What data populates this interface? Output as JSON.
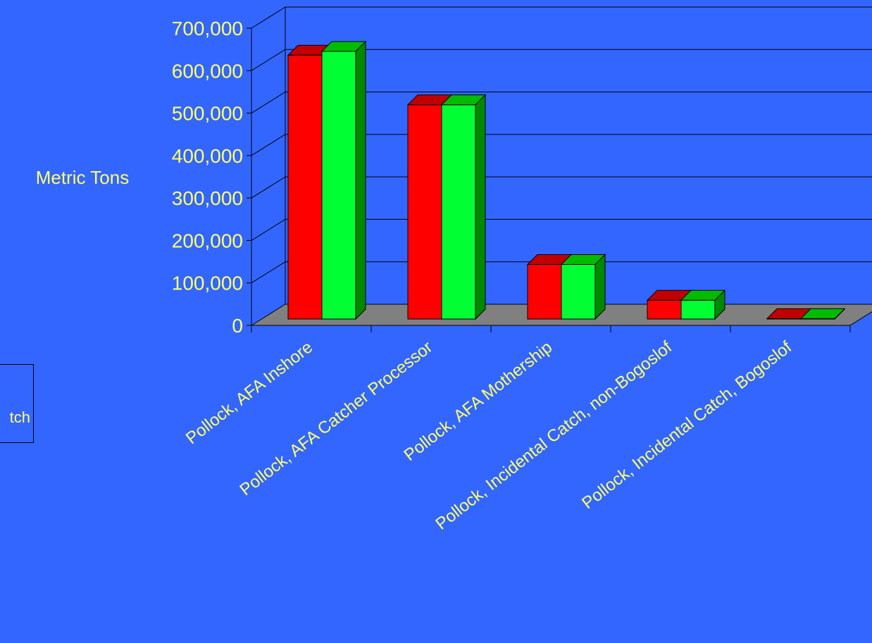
{
  "chart_data": {
    "type": "bar",
    "ylabel": "Metric Tons",
    "ylim": [
      0,
      700000
    ],
    "yticks": [
      "0",
      "100,000",
      "200,000",
      "300,000",
      "400,000",
      "500,000",
      "600,000",
      "700,000"
    ],
    "categories": [
      "Pollock, AFA Inshore",
      "Pollock, AFA Catcher Processor",
      "Pollock, AFA Mothership",
      "Pollock, Incidental Catch, non-Bogoslof",
      "Pollock, Incidental Catch, Bogoslof"
    ],
    "series": [
      {
        "values": [
          643000,
          522000,
          133000,
          46000,
          1000
        ]
      },
      {
        "name": "tch",
        "values": [
          652000,
          522000,
          133000,
          46000,
          1000
        ]
      }
    ],
    "grid": true,
    "three_d": true,
    "legend_position": "left"
  },
  "colors": {
    "background": "#3366ff",
    "text": "#ffff66",
    "floor": "#808080",
    "series": [
      {
        "front": "#ff0000",
        "side": "#990000",
        "top": "#c00000"
      },
      {
        "front": "#00ff33",
        "side": "#008800",
        "top": "#00bb00"
      }
    ]
  }
}
